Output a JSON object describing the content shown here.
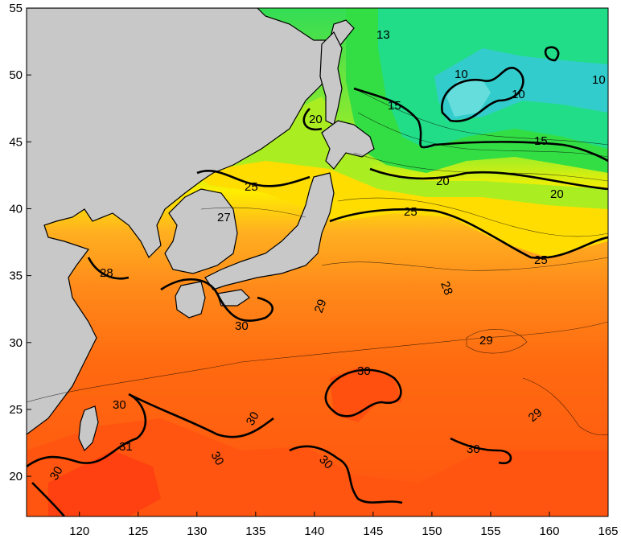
{
  "axes": {
    "lon_ticks": [
      "120",
      "125",
      "130",
      "135",
      "140",
      "145",
      "150",
      "155",
      "160",
      "165"
    ],
    "lat_ticks": [
      "20",
      "25",
      "30",
      "35",
      "40",
      "45",
      "50",
      "55"
    ]
  },
  "colors": {
    "land": "#c8c8c8",
    "sst_10": "#33cccc",
    "sst_13": "#33dd99",
    "sst_15": "#33dd44",
    "sst_20": "#aaee22",
    "sst_25": "#ffdd00",
    "sst_27": "#ffb020",
    "sst_28": "#ff9020",
    "sst_29": "#ff7010",
    "sst_30": "#ff5a10",
    "sst_31": "#ff4410"
  },
  "contour_labels": [
    {
      "text": "13"
    },
    {
      "text": "10"
    },
    {
      "text": "10"
    },
    {
      "text": "10"
    },
    {
      "text": "15"
    },
    {
      "text": "15"
    },
    {
      "text": "20"
    },
    {
      "text": "20"
    },
    {
      "text": "20"
    },
    {
      "text": "25"
    },
    {
      "text": "25"
    },
    {
      "text": "25"
    },
    {
      "text": "27"
    },
    {
      "text": "28"
    },
    {
      "text": "28"
    },
    {
      "text": "29"
    },
    {
      "text": "29"
    },
    {
      "text": "29"
    },
    {
      "text": "30"
    },
    {
      "text": "30"
    },
    {
      "text": "30"
    },
    {
      "text": "30"
    },
    {
      "text": "30"
    },
    {
      "text": "30"
    },
    {
      "text": "31"
    },
    {
      "text": "30"
    },
    {
      "text": "30"
    }
  ]
}
